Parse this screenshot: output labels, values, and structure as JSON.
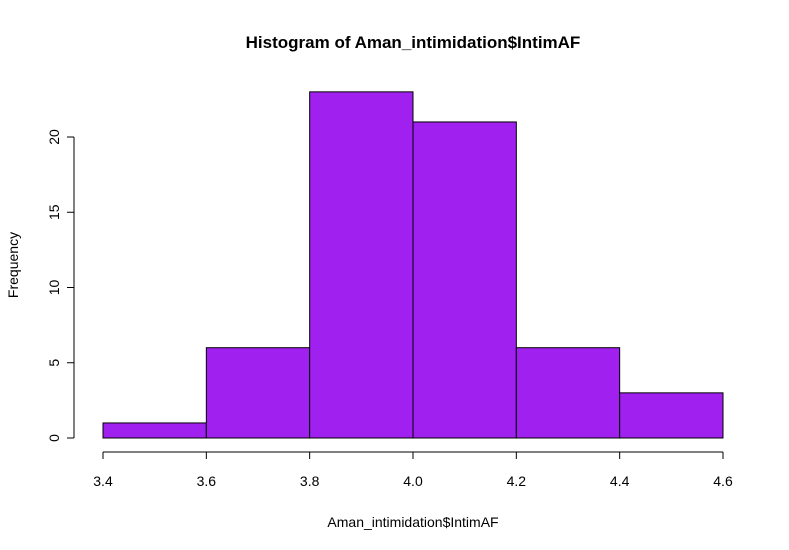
{
  "chart_data": {
    "type": "bar",
    "title": "Histogram of Aman_intimidation$IntimAF",
    "xlabel": "Aman_intimidation$IntimAF",
    "ylabel": "Frequency",
    "bins": [
      {
        "start": 3.4,
        "end": 3.6,
        "count": 1
      },
      {
        "start": 3.6,
        "end": 3.8,
        "count": 6
      },
      {
        "start": 3.8,
        "end": 4.0,
        "count": 23
      },
      {
        "start": 4.0,
        "end": 4.2,
        "count": 21
      },
      {
        "start": 4.2,
        "end": 4.4,
        "count": 6
      },
      {
        "start": 4.4,
        "end": 4.6,
        "count": 3
      }
    ],
    "x_ticks": [
      "3.4",
      "3.6",
      "3.8",
      "4.0",
      "4.2",
      "4.4",
      "4.6"
    ],
    "y_ticks": [
      "0",
      "5",
      "10",
      "15",
      "20"
    ],
    "xlim": [
      3.4,
      4.6
    ],
    "ylim": [
      0,
      23
    ],
    "grid": false,
    "bar_color": "#a020f0"
  }
}
